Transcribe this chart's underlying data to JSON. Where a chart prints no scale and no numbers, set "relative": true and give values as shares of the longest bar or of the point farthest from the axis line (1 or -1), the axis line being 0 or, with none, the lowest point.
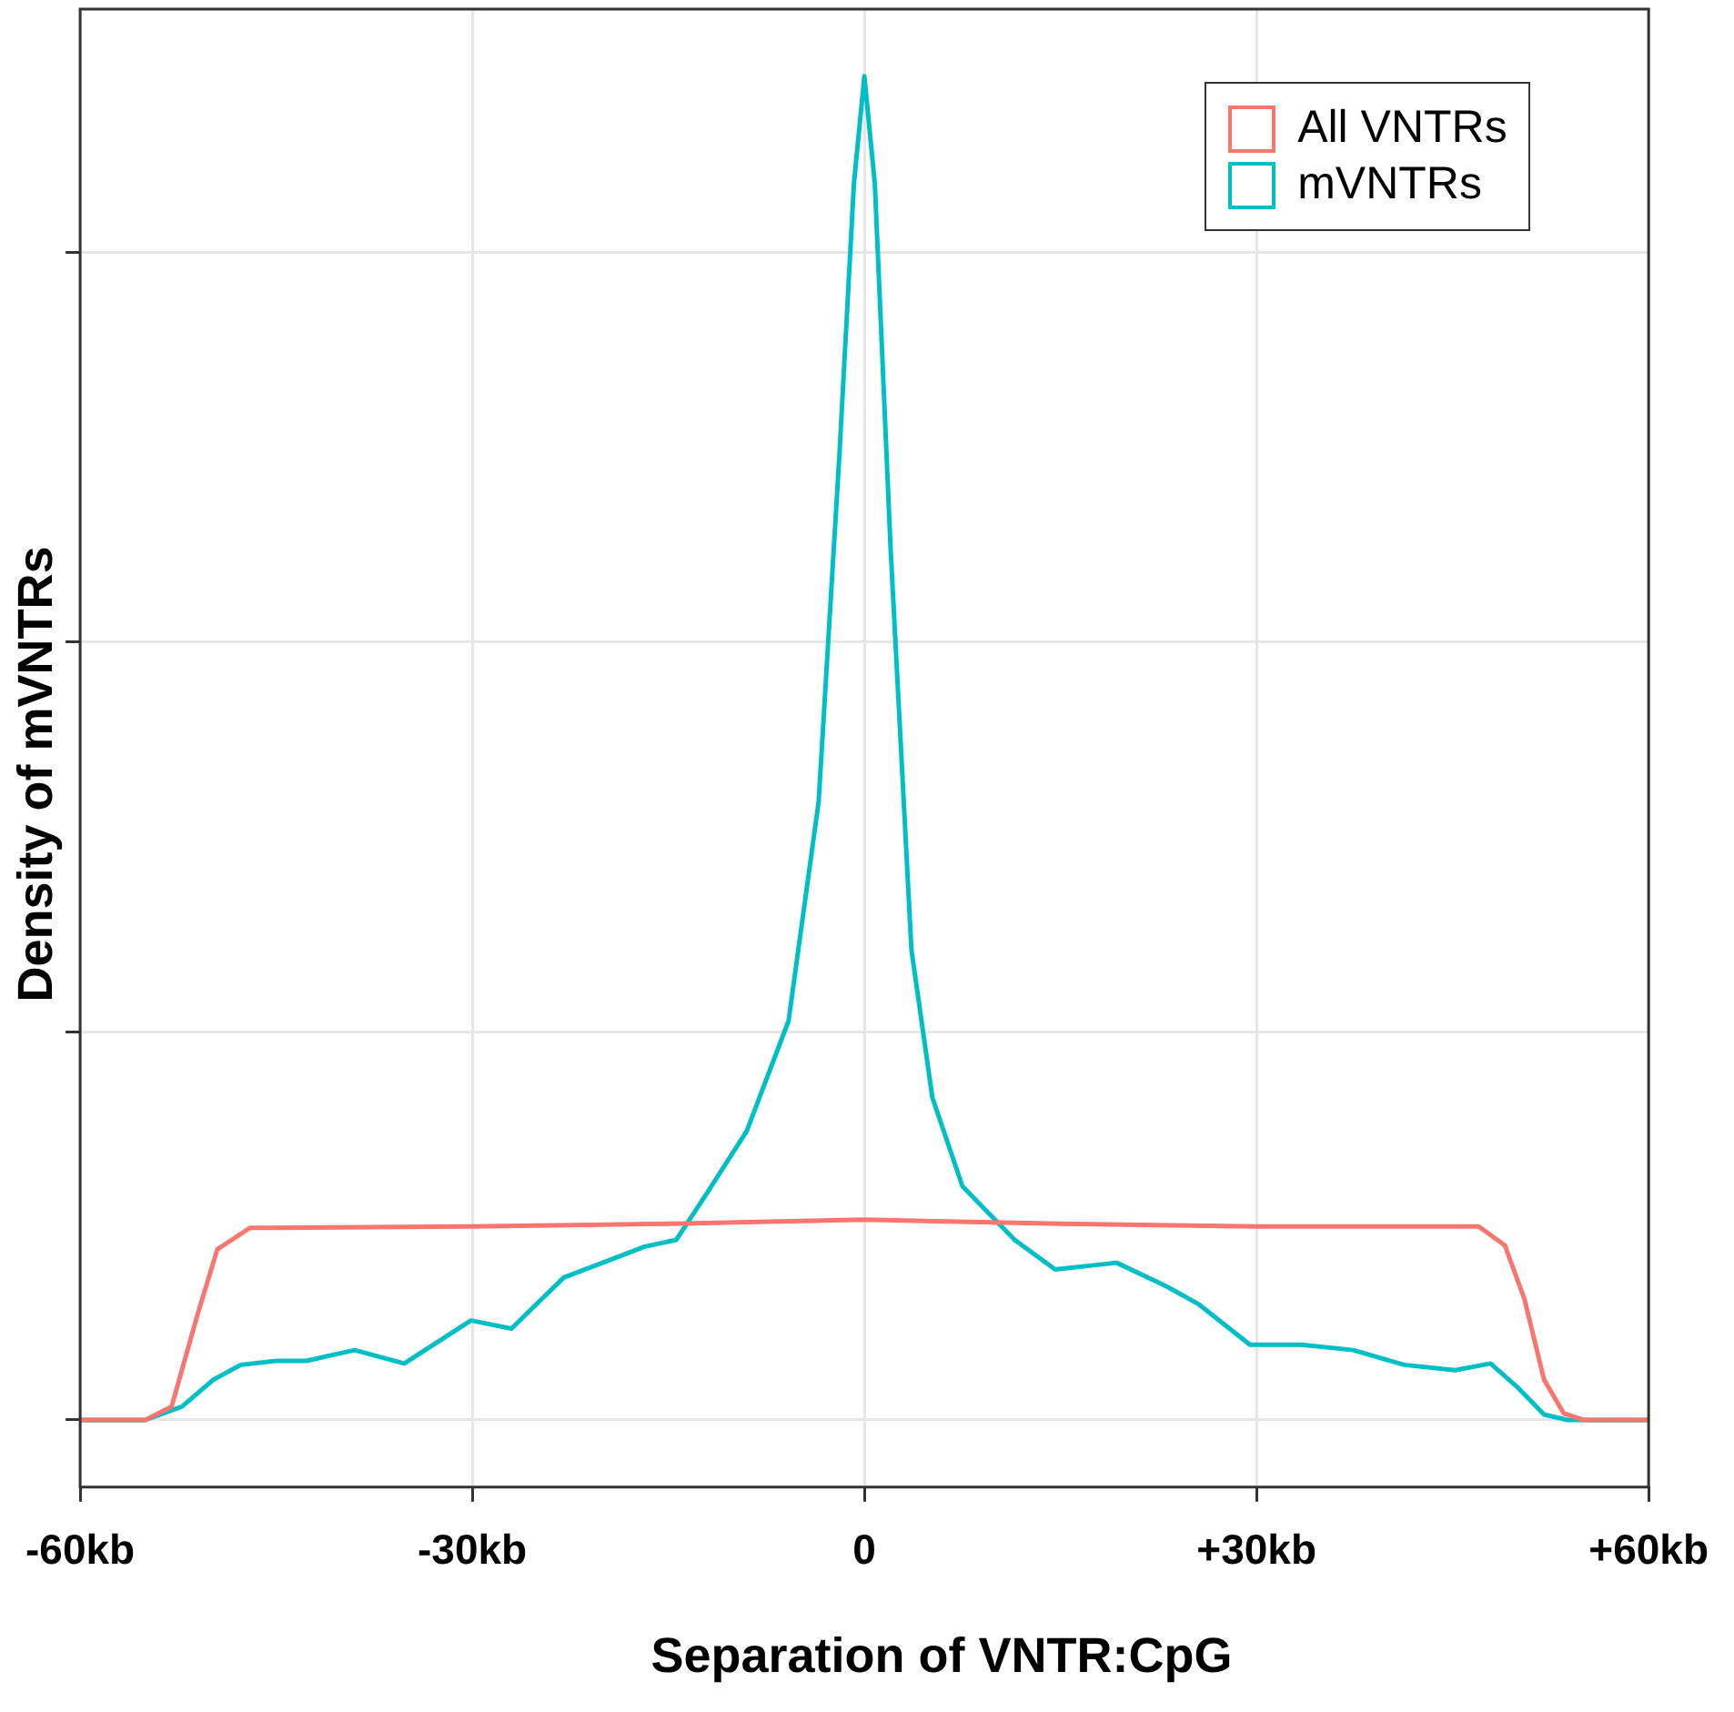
{
  "chart_data": {
    "type": "line",
    "xlabel": "Separation of VNTR:CpG",
    "ylabel": "Density of mVNTRs",
    "relative": true,
    "grid": true,
    "legend": "top right",
    "marker": "none",
    "line_style": "solid",
    "tick_labels": "x",
    "xlim": [
      -60,
      60
    ],
    "xticks": [
      {
        "value": -60,
        "label": "-60kb"
      },
      {
        "value": -30,
        "label": "-30kb"
      },
      0,
      {
        "value": 30,
        "label": "+30kb"
      },
      {
        "value": 60,
        "label": "+60kb"
      }
    ],
    "series": [
      {
        "name": "All VNTRs",
        "color": "#f8766d",
        "x": [
          -60,
          -55,
          -53,
          -51,
          -49.5,
          -47,
          -45,
          -30,
          -15,
          0,
          15,
          30,
          47,
          49,
          50.5,
          52,
          53.5,
          55,
          60
        ],
        "values": [
          0,
          0,
          0.01,
          0.079,
          0.127,
          0.143,
          0.143,
          0.144,
          0.146,
          0.149,
          0.146,
          0.144,
          0.144,
          0.13,
          0.09,
          0.03,
          0.005,
          0,
          0
        ]
      },
      {
        "name": "mVNTRs",
        "color": "#00bfc4",
        "x": [
          -60,
          -55,
          -52.2,
          -49.8,
          -47.7,
          -45,
          -42.7,
          -39,
          -35.2,
          -32.5,
          -30.1,
          -27,
          -23,
          -19.2,
          -16.8,
          -14.4,
          -12.1,
          -9,
          -5.8,
          -3.5,
          -1.9,
          -0.8,
          0,
          0.8,
          2,
          3.6,
          5.2,
          7.5,
          11.5,
          14.6,
          19.3,
          23.2,
          25.6,
          29.5,
          33.4,
          37.4,
          41.3,
          45.2,
          47.9,
          49.9,
          52,
          53.8,
          60
        ],
        "values": [
          0,
          0,
          0.01,
          0.03,
          0.041,
          0.044,
          0.044,
          0.052,
          0.042,
          0.059,
          0.074,
          0.068,
          0.106,
          0.12,
          0.129,
          0.134,
          0.168,
          0.215,
          0.297,
          0.46,
          0.72,
          0.92,
          1,
          0.92,
          0.65,
          0.35,
          0.24,
          0.174,
          0.134,
          0.112,
          0.117,
          0.099,
          0.086,
          0.056,
          0.056,
          0.052,
          0.041,
          0.037,
          0.042,
          0.025,
          0.004,
          0,
          0
        ]
      }
    ]
  }
}
